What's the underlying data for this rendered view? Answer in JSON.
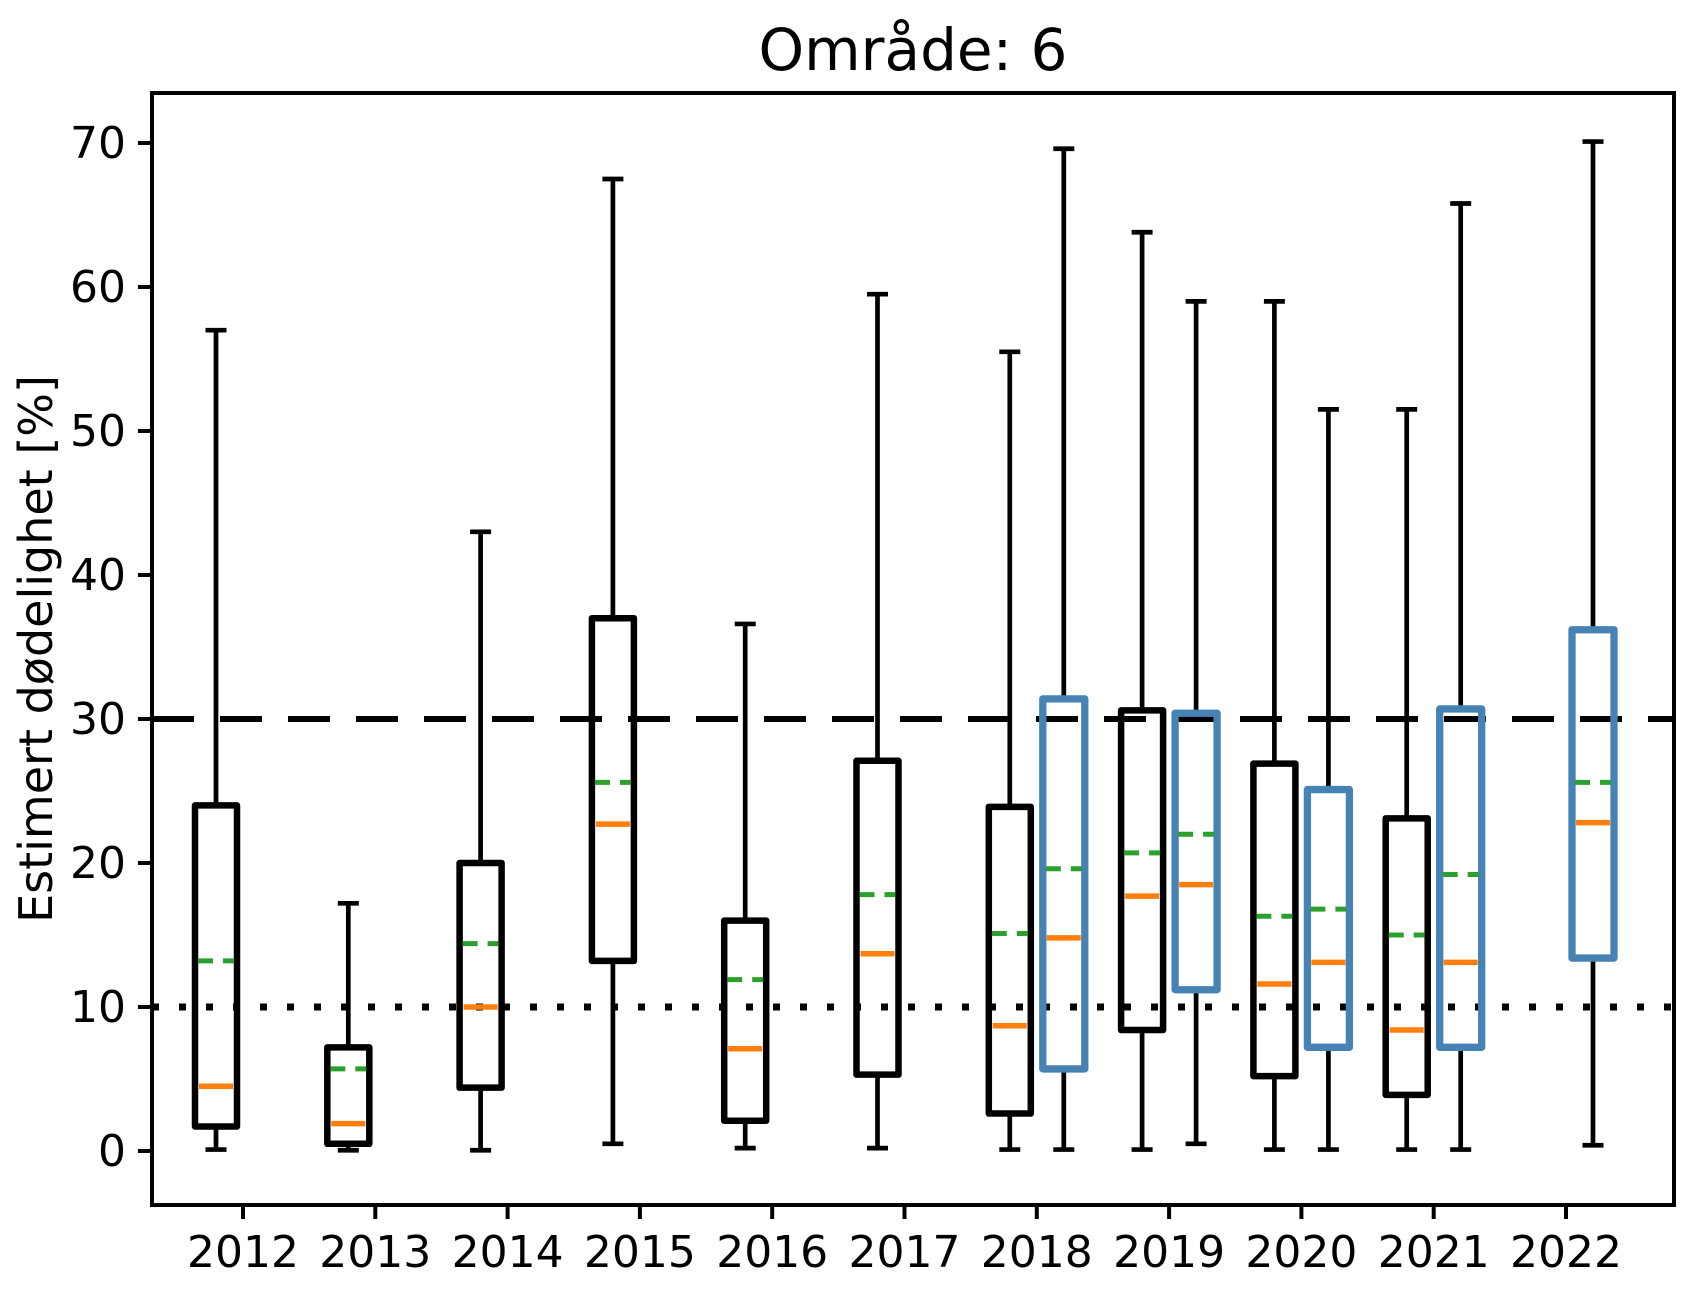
{
  "title": "Område: 6",
  "ylabel": "Estimert dødelighet [%]",
  "colors": {
    "black_series": "#000000",
    "blue_series": "#4682b4",
    "median": "#ff7f0e",
    "mean": "#2ca02c",
    "reference": "#000000",
    "background": "#ffffff"
  },
  "chart_data": {
    "type": "boxplot",
    "title": "Område: 6",
    "xlabel": "",
    "ylabel": "Estimert dødelighet [%]",
    "categories": [
      "2012",
      "2013",
      "2014",
      "2015",
      "2016",
      "2017",
      "2018",
      "2019",
      "2020",
      "2021",
      "2022"
    ],
    "yticks": [
      0,
      10,
      20,
      30,
      40,
      50,
      60,
      70
    ],
    "ylim": [
      -3.75,
      73.5
    ],
    "grid": false,
    "legend": "none",
    "reference_lines": [
      {
        "y": 30,
        "style": "dashed"
      },
      {
        "y": 10,
        "style": "dotted"
      }
    ],
    "series": [
      {
        "name": "black",
        "color_key": "black_series",
        "offset": -0.2,
        "boxes": [
          {
            "whislo": 0.1,
            "q1": 1.7,
            "med": 4.5,
            "mean": 13.2,
            "q3": 24.0,
            "whishi": 57.0
          },
          {
            "whislo": 0.05,
            "q1": 0.5,
            "med": 1.9,
            "mean": 5.7,
            "q3": 7.2,
            "whishi": 17.2
          },
          {
            "whislo": 0.05,
            "q1": 4.4,
            "med": 10.0,
            "mean": 14.4,
            "q3": 20.0,
            "whishi": 43.0
          },
          {
            "whislo": 0.5,
            "q1": 13.2,
            "med": 22.7,
            "mean": 25.6,
            "q3": 37.0,
            "whishi": 67.5
          },
          {
            "whislo": 0.2,
            "q1": 2.1,
            "med": 7.1,
            "mean": 11.9,
            "q3": 16.0,
            "whishi": 36.6
          },
          {
            "whislo": 0.2,
            "q1": 5.3,
            "med": 13.7,
            "mean": 17.8,
            "q3": 27.1,
            "whishi": 59.5
          },
          {
            "whislo": 0.1,
            "q1": 2.6,
            "med": 8.7,
            "mean": 15.1,
            "q3": 23.9,
            "whishi": 55.5
          },
          {
            "whislo": 0.1,
            "q1": 8.4,
            "med": 17.7,
            "mean": 20.7,
            "q3": 30.6,
            "whishi": 63.8
          },
          {
            "whislo": 0.1,
            "q1": 5.2,
            "med": 11.6,
            "mean": 16.3,
            "q3": 26.9,
            "whishi": 59.0
          },
          {
            "whislo": 0.1,
            "q1": 3.9,
            "med": 8.4,
            "mean": 15.0,
            "q3": 23.1,
            "whishi": 51.5
          },
          null
        ]
      },
      {
        "name": "steelblue",
        "color_key": "blue_series",
        "offset": 0.2,
        "boxes": [
          null,
          null,
          null,
          null,
          null,
          null,
          {
            "whislo": 0.1,
            "q1": 5.7,
            "med": 14.8,
            "mean": 19.6,
            "q3": 31.4,
            "whishi": 69.6
          },
          {
            "whislo": 0.5,
            "q1": 11.2,
            "med": 18.5,
            "mean": 22.0,
            "q3": 30.4,
            "whishi": 59.0
          },
          {
            "whislo": 0.1,
            "q1": 7.2,
            "med": 13.1,
            "mean": 16.8,
            "q3": 25.1,
            "whishi": 51.5
          },
          {
            "whislo": 0.1,
            "q1": 7.2,
            "med": 13.1,
            "mean": 19.2,
            "q3": 30.7,
            "whishi": 65.8
          },
          {
            "whislo": 0.4,
            "q1": 13.4,
            "med": 22.8,
            "mean": 25.6,
            "q3": 36.2,
            "whishi": 70.1
          }
        ]
      }
    ]
  }
}
